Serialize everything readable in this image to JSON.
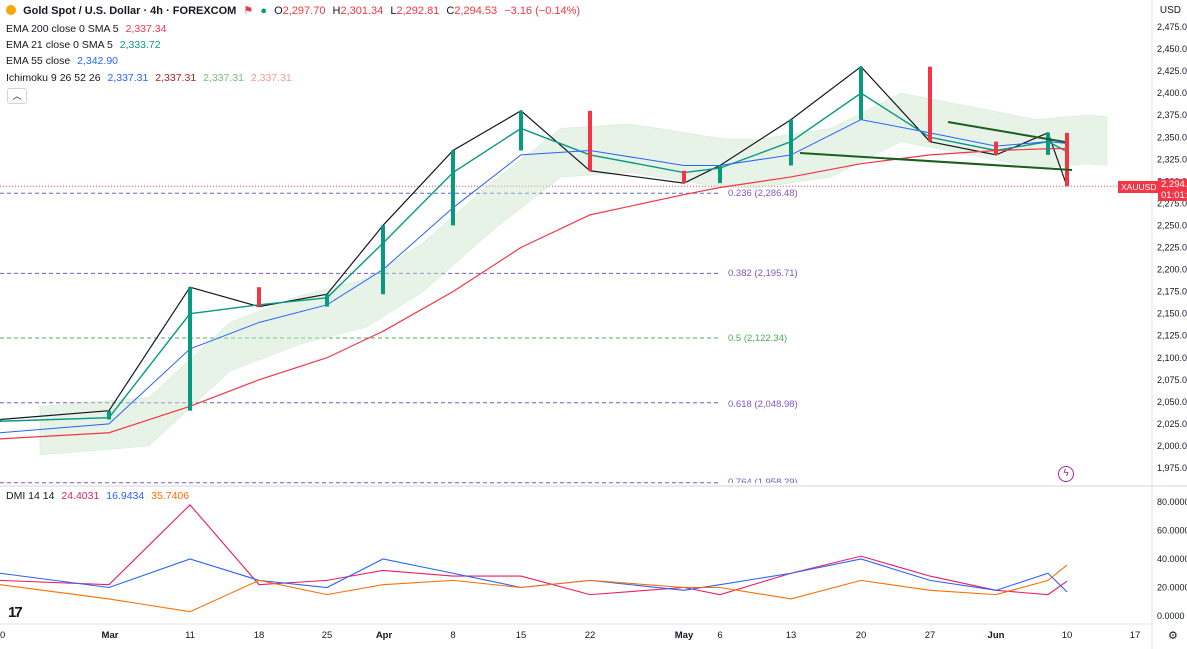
{
  "header": {
    "symbol": "Gold Spot / U.S. Dollar · 4h · FOREXCOM",
    "open_label": "O",
    "open": "2,297.70",
    "high_label": "H",
    "high": "2,301.34",
    "low_label": "L",
    "low": "2,292.81",
    "close_label": "C",
    "close": "2,294.53",
    "change": "−3.16 (−0.14%)"
  },
  "indicators": [
    {
      "name": "EMA 200 close 0 SMA 5",
      "value": "2,337.34",
      "color": "#f23645"
    },
    {
      "name": "EMA 21 close 0 SMA 5",
      "value": "2,333.72",
      "color": "#089981"
    },
    {
      "name": "EMA 55 close",
      "value": "2,342.90",
      "color": "#2962ff"
    },
    {
      "name": "Ichimoku 9 26 52 26",
      "values": [
        "2,337.31",
        "2,337.31",
        "2,337.31",
        "2,337.31"
      ],
      "colors": [
        "#2962ff",
        "#b71c1c",
        "#43a047",
        "#ef9a9a"
      ]
    }
  ],
  "collapse_icon": "chevron-up-icon",
  "currency": "USD",
  "price_tag": {
    "symbol": "XAUUSD",
    "price": "2,294.5",
    "timer": "01:01:",
    "color": "#f23645"
  },
  "fibs": [
    {
      "label": "0.236 (2,286.48)",
      "level": 2286.48,
      "color": "#5b6bc0"
    },
    {
      "label": "0.382 (2,195.71)",
      "level": 2195.71,
      "color": "#7e57c2"
    },
    {
      "label": "0.5 (2,122.34)",
      "level": 2122.34,
      "color": "#4caf50"
    },
    {
      "label": "0.618 (2,048.98)",
      "level": 2048.98,
      "color": "#7e57c2"
    },
    {
      "label": "0.764 (1,958.29)",
      "level": 1958.29,
      "color": "#7e57c2"
    }
  ],
  "dmi": {
    "label": "DMI 14 14",
    "values": [
      "24.4031",
      "16.9434",
      "35.7406"
    ],
    "colors": [
      "#e91e63",
      "#2962ff",
      "#ff6d00"
    ]
  },
  "x_labels": [
    "0",
    "Mar",
    "11",
    "18",
    "25",
    "Apr",
    "8",
    "15",
    "22",
    "May",
    "6",
    "13",
    "20",
    "27",
    "Jun",
    "10",
    "17"
  ],
  "y_ticks": [
    "2,475.00",
    "2,450.00",
    "2,425.00",
    "2,400.00",
    "2,375.00",
    "2,350.00",
    "2,325.00",
    "2,300.00",
    "2,275.00",
    "2,250.00",
    "2,225.00",
    "2,200.00",
    "2,175.00",
    "2,150.00",
    "2,125.00",
    "2,100.00",
    "2,075.00",
    "2,050.00",
    "2,025.00",
    "2,000.00",
    "1,975.00"
  ],
  "dmi_ticks": [
    "80.0000",
    "60.0000",
    "40.0000",
    "20.0000",
    "0.0000"
  ],
  "chart_data": {
    "type": "line",
    "title": "Gold Spot / U.S. Dollar · 4h · FOREXCOM",
    "x": [
      "Feb 26",
      "Mar 4",
      "Mar 11",
      "Mar 18",
      "Mar 25",
      "Apr 1",
      "Apr 8",
      "Apr 15",
      "Apr 22",
      "May 1",
      "May 6",
      "May 13",
      "May 20",
      "May 27",
      "Jun 3",
      "Jun 7",
      "Jun 10"
    ],
    "series": [
      {
        "name": "XAUUSD",
        "values": [
          2030,
          2040,
          2180,
          2158,
          2172,
          2250,
          2335,
          2380,
          2312,
          2298,
          2318,
          2370,
          2430,
          2345,
          2330,
          2355,
          2294.53
        ]
      },
      {
        "name": "EMA 21",
        "values": [
          2028,
          2032,
          2150,
          2160,
          2168,
          2230,
          2310,
          2360,
          2330,
          2310,
          2315,
          2345,
          2400,
          2350,
          2335,
          2345,
          2333.72
        ]
      },
      {
        "name": "EMA 55",
        "values": [
          2015,
          2025,
          2110,
          2140,
          2160,
          2200,
          2270,
          2330,
          2335,
          2318,
          2318,
          2330,
          2370,
          2355,
          2340,
          2345,
          2342.9
        ]
      },
      {
        "name": "EMA 200",
        "values": [
          2008,
          2015,
          2045,
          2075,
          2100,
          2130,
          2175,
          2225,
          2262,
          2285,
          2293,
          2305,
          2320,
          2330,
          2335,
          2337,
          2337.34
        ]
      }
    ],
    "ylim": [
      1958,
      2480
    ],
    "fib_levels": [
      2286.48,
      2195.71,
      2122.34,
      2048.98,
      1958.29
    ],
    "dmi": {
      "x": [
        "Feb 26",
        "Mar 4",
        "Mar 11",
        "Mar 18",
        "Mar 25",
        "Apr 1",
        "Apr 8",
        "Apr 15",
        "Apr 22",
        "May 1",
        "May 6",
        "May 13",
        "May 20",
        "May 27",
        "Jun 3",
        "Jun 7",
        "Jun 10"
      ],
      "series": [
        {
          "name": "+DI",
          "values": [
            25,
            22,
            78,
            22,
            25,
            32,
            28,
            28,
            15,
            20,
            15,
            30,
            42,
            28,
            18,
            15,
            24.4
          ]
        },
        {
          "name": "-DI",
          "values": [
            30,
            20,
            40,
            25,
            20,
            40,
            30,
            20,
            25,
            18,
            22,
            30,
            40,
            25,
            18,
            30,
            16.94
          ]
        },
        {
          "name": "ADX",
          "values": [
            22,
            12,
            3,
            25,
            15,
            22,
            25,
            20,
            25,
            20,
            20,
            12,
            25,
            18,
            15,
            25,
            35.74
          ]
        }
      ],
      "ylim": [
        0,
        85
      ]
    }
  }
}
